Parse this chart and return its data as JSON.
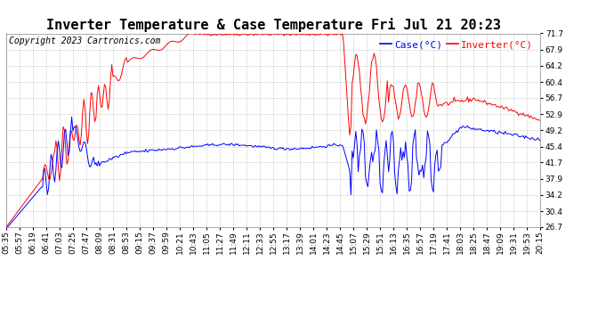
{
  "title": "Inverter Temperature & Case Temperature Fri Jul 21 20:23",
  "copyright": "Copyright 2023 Cartronics.com",
  "legend_case": "Case(°C)",
  "legend_inverter": "Inverter(°C)",
  "yticks": [
    26.7,
    30.4,
    34.2,
    37.9,
    41.7,
    45.4,
    49.2,
    52.9,
    56.7,
    60.4,
    64.2,
    67.9,
    71.7
  ],
  "ymin": 26.7,
  "ymax": 71.7,
  "bg_color": "#ffffff",
  "grid_color": "#aaaaaa",
  "case_color": "blue",
  "inverter_color": "red",
  "title_fontsize": 11,
  "tick_fontsize": 6.5,
  "legend_fontsize": 8,
  "copyright_fontsize": 7
}
